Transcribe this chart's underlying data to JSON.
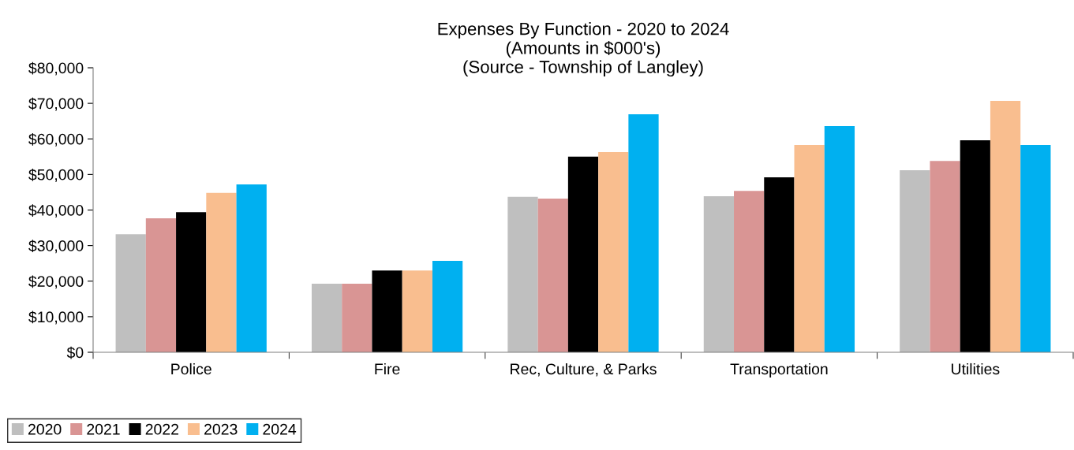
{
  "chart_data": {
    "type": "bar",
    "title": "Expenses By Function - 2020 to 2024\n(Amounts in $000's)\n(Source - Township of Langley)",
    "categories": [
      "Police",
      "Fire",
      "Rec, Culture, & Parks",
      "Transportation",
      "Utilities"
    ],
    "series": [
      {
        "name": "2020",
        "color": "#bfbfbf",
        "values": [
          33200,
          19300,
          43700,
          43900,
          51200
        ]
      },
      {
        "name": "2021",
        "color": "#d99594",
        "values": [
          37700,
          19300,
          43200,
          45400,
          53800
        ]
      },
      {
        "name": "2022",
        "color": "#000000",
        "values": [
          39400,
          23000,
          55000,
          49200,
          59600
        ]
      },
      {
        "name": "2023",
        "color": "#f9be8f",
        "values": [
          44800,
          23000,
          56300,
          58300,
          70700
        ]
      },
      {
        "name": "2024",
        "color": "#00b0f0",
        "values": [
          47200,
          25700,
          66900,
          63600,
          58300
        ]
      }
    ],
    "ylim": [
      0,
      80000
    ],
    "yticks": [
      {
        "value": 0,
        "label": "$0"
      },
      {
        "value": 10000,
        "label": "$10,000"
      },
      {
        "value": 20000,
        "label": "$20,000"
      },
      {
        "value": 30000,
        "label": "$30,000"
      },
      {
        "value": 40000,
        "label": "$40,000"
      },
      {
        "value": 50000,
        "label": "$50,000"
      },
      {
        "value": 60000,
        "label": "$60,000"
      },
      {
        "value": 70000,
        "label": "$70,000"
      },
      {
        "value": 80000,
        "label": "$80,000"
      }
    ],
    "grid": false,
    "legend": "bottom left"
  }
}
